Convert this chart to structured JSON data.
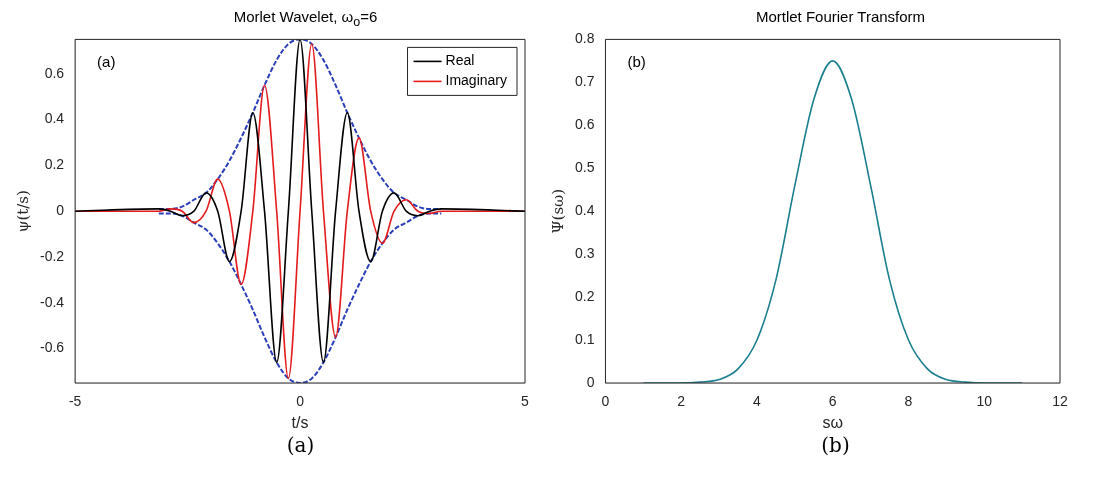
{
  "chart_data": [
    {
      "type": "line",
      "title": "Morlet Wavelet, ω$_{o}$=6",
      "xlabel": "t/s",
      "ylabel": "ψ(t/s)",
      "annotations": [
        "(a)",
        "(a)"
      ],
      "xlim": [
        -5,
        5
      ],
      "xticks": [
        -5,
        0,
        5
      ],
      "ylim": [
        -0.75,
        0.75
      ],
      "yticks": [
        -0.6,
        -0.4,
        -0.2,
        0,
        0.2,
        0.4,
        0.6
      ],
      "legend": "top right",
      "series": [
        {
          "name": "Real",
          "color": "#000000",
          "x": [
            -5,
            -3.14,
            -2.88,
            -2.62,
            -2.36,
            -2.09,
            -1.83,
            -1.57,
            -1.31,
            -1.05,
            -0.79,
            -0.52,
            -0.26,
            0,
            0.26,
            0.52,
            0.79,
            1.05,
            1.31,
            1.57,
            1.83,
            2.09,
            2.36,
            2.62,
            2.88,
            3.14,
            5
          ],
          "values": [
            0,
            0.01,
            0,
            -0.02,
            0,
            0.08,
            0,
            -0.22,
            0,
            0.43,
            0,
            -0.66,
            0,
            0.75,
            0,
            -0.66,
            0,
            0.43,
            0,
            -0.22,
            0,
            0.08,
            0,
            -0.02,
            0,
            0.01,
            0
          ]
        },
        {
          "name": "Imaginary",
          "color": "#e41a1c",
          "x": [
            -5,
            -3.14,
            -2.88,
            -2.62,
            -2.36,
            -2.09,
            -1.83,
            -1.57,
            -1.31,
            -1.05,
            -0.79,
            -0.52,
            -0.26,
            0,
            0.26,
            0.52,
            0.79,
            1.05,
            1.31,
            1.57,
            1.83,
            2.09,
            2.36,
            2.62,
            2.88,
            3.14,
            5
          ],
          "values": [
            0,
            0,
            0.01,
            0,
            -0.05,
            0,
            0.14,
            0,
            -0.32,
            0,
            0.55,
            0,
            -0.73,
            0,
            0.73,
            0,
            -0.55,
            0,
            0.32,
            0,
            -0.14,
            0,
            0.05,
            0,
            -0.01,
            0,
            0
          ]
        },
        {
          "color": "#2b3fb8",
          "line_style": "dashed",
          "x": [
            -3.14,
            -2.88,
            -2.62,
            -2.36,
            -2.09,
            -1.83,
            -1.57,
            -1.31,
            -1.05,
            -0.79,
            -0.52,
            -0.26,
            0,
            0.26,
            0.52,
            0.79,
            1.05,
            1.31,
            1.57,
            1.83,
            2.09,
            2.36,
            2.62,
            2.88,
            3.14
          ],
          "values": [
            0.01,
            0.01,
            0.02,
            0.05,
            0.08,
            0.14,
            0.22,
            0.32,
            0.43,
            0.55,
            0.66,
            0.73,
            0.75,
            0.73,
            0.66,
            0.55,
            0.43,
            0.32,
            0.22,
            0.14,
            0.08,
            0.05,
            0.02,
            0.01,
            0.01
          ]
        },
        {
          "color": "#2b3fb8",
          "line_style": "dashed",
          "x": [
            -3.14,
            -2.88,
            -2.62,
            -2.36,
            -2.09,
            -1.83,
            -1.57,
            -1.31,
            -1.05,
            -0.79,
            -0.52,
            -0.26,
            0,
            0.26,
            0.52,
            0.79,
            1.05,
            1.31,
            1.57,
            1.83,
            2.09,
            2.36,
            2.62,
            2.88,
            3.14
          ],
          "values": [
            -0.01,
            -0.01,
            -0.02,
            -0.05,
            -0.08,
            -0.14,
            -0.22,
            -0.32,
            -0.43,
            -0.55,
            -0.66,
            -0.73,
            -0.75,
            -0.73,
            -0.66,
            -0.55,
            -0.43,
            -0.32,
            -0.22,
            -0.14,
            -0.08,
            -0.05,
            -0.02,
            -0.01,
            -0.01
          ]
        }
      ]
    },
    {
      "type": "line",
      "title": "Mortlet Fourier Transform",
      "xlabel": "sω",
      "ylabel": "Ψ(sω)",
      "annotations": [
        "(b)",
        "(b)"
      ],
      "xlim": [
        0,
        12
      ],
      "xticks": [
        0,
        2,
        4,
        6,
        8,
        10,
        12
      ],
      "ylim": [
        0,
        0.8
      ],
      "yticks": [
        0,
        0.1,
        0.2,
        0.3,
        0.4,
        0.5,
        0.6,
        0.7,
        0.8
      ],
      "series": [
        {
          "color": "#1a7f8e",
          "x": [
            1,
            1.5,
            2,
            2.5,
            3,
            3.5,
            4,
            4.5,
            5,
            5.5,
            6,
            6.5,
            7,
            7.5,
            8,
            8.5,
            9,
            9.5,
            10,
            10.5,
            11
          ],
          "values": [
            0,
            0,
            0,
            0.002,
            0.008,
            0.033,
            0.1,
            0.24,
            0.46,
            0.66,
            0.75,
            0.66,
            0.46,
            0.24,
            0.1,
            0.033,
            0.008,
            0.002,
            0,
            0,
            0
          ]
        }
      ]
    }
  ]
}
